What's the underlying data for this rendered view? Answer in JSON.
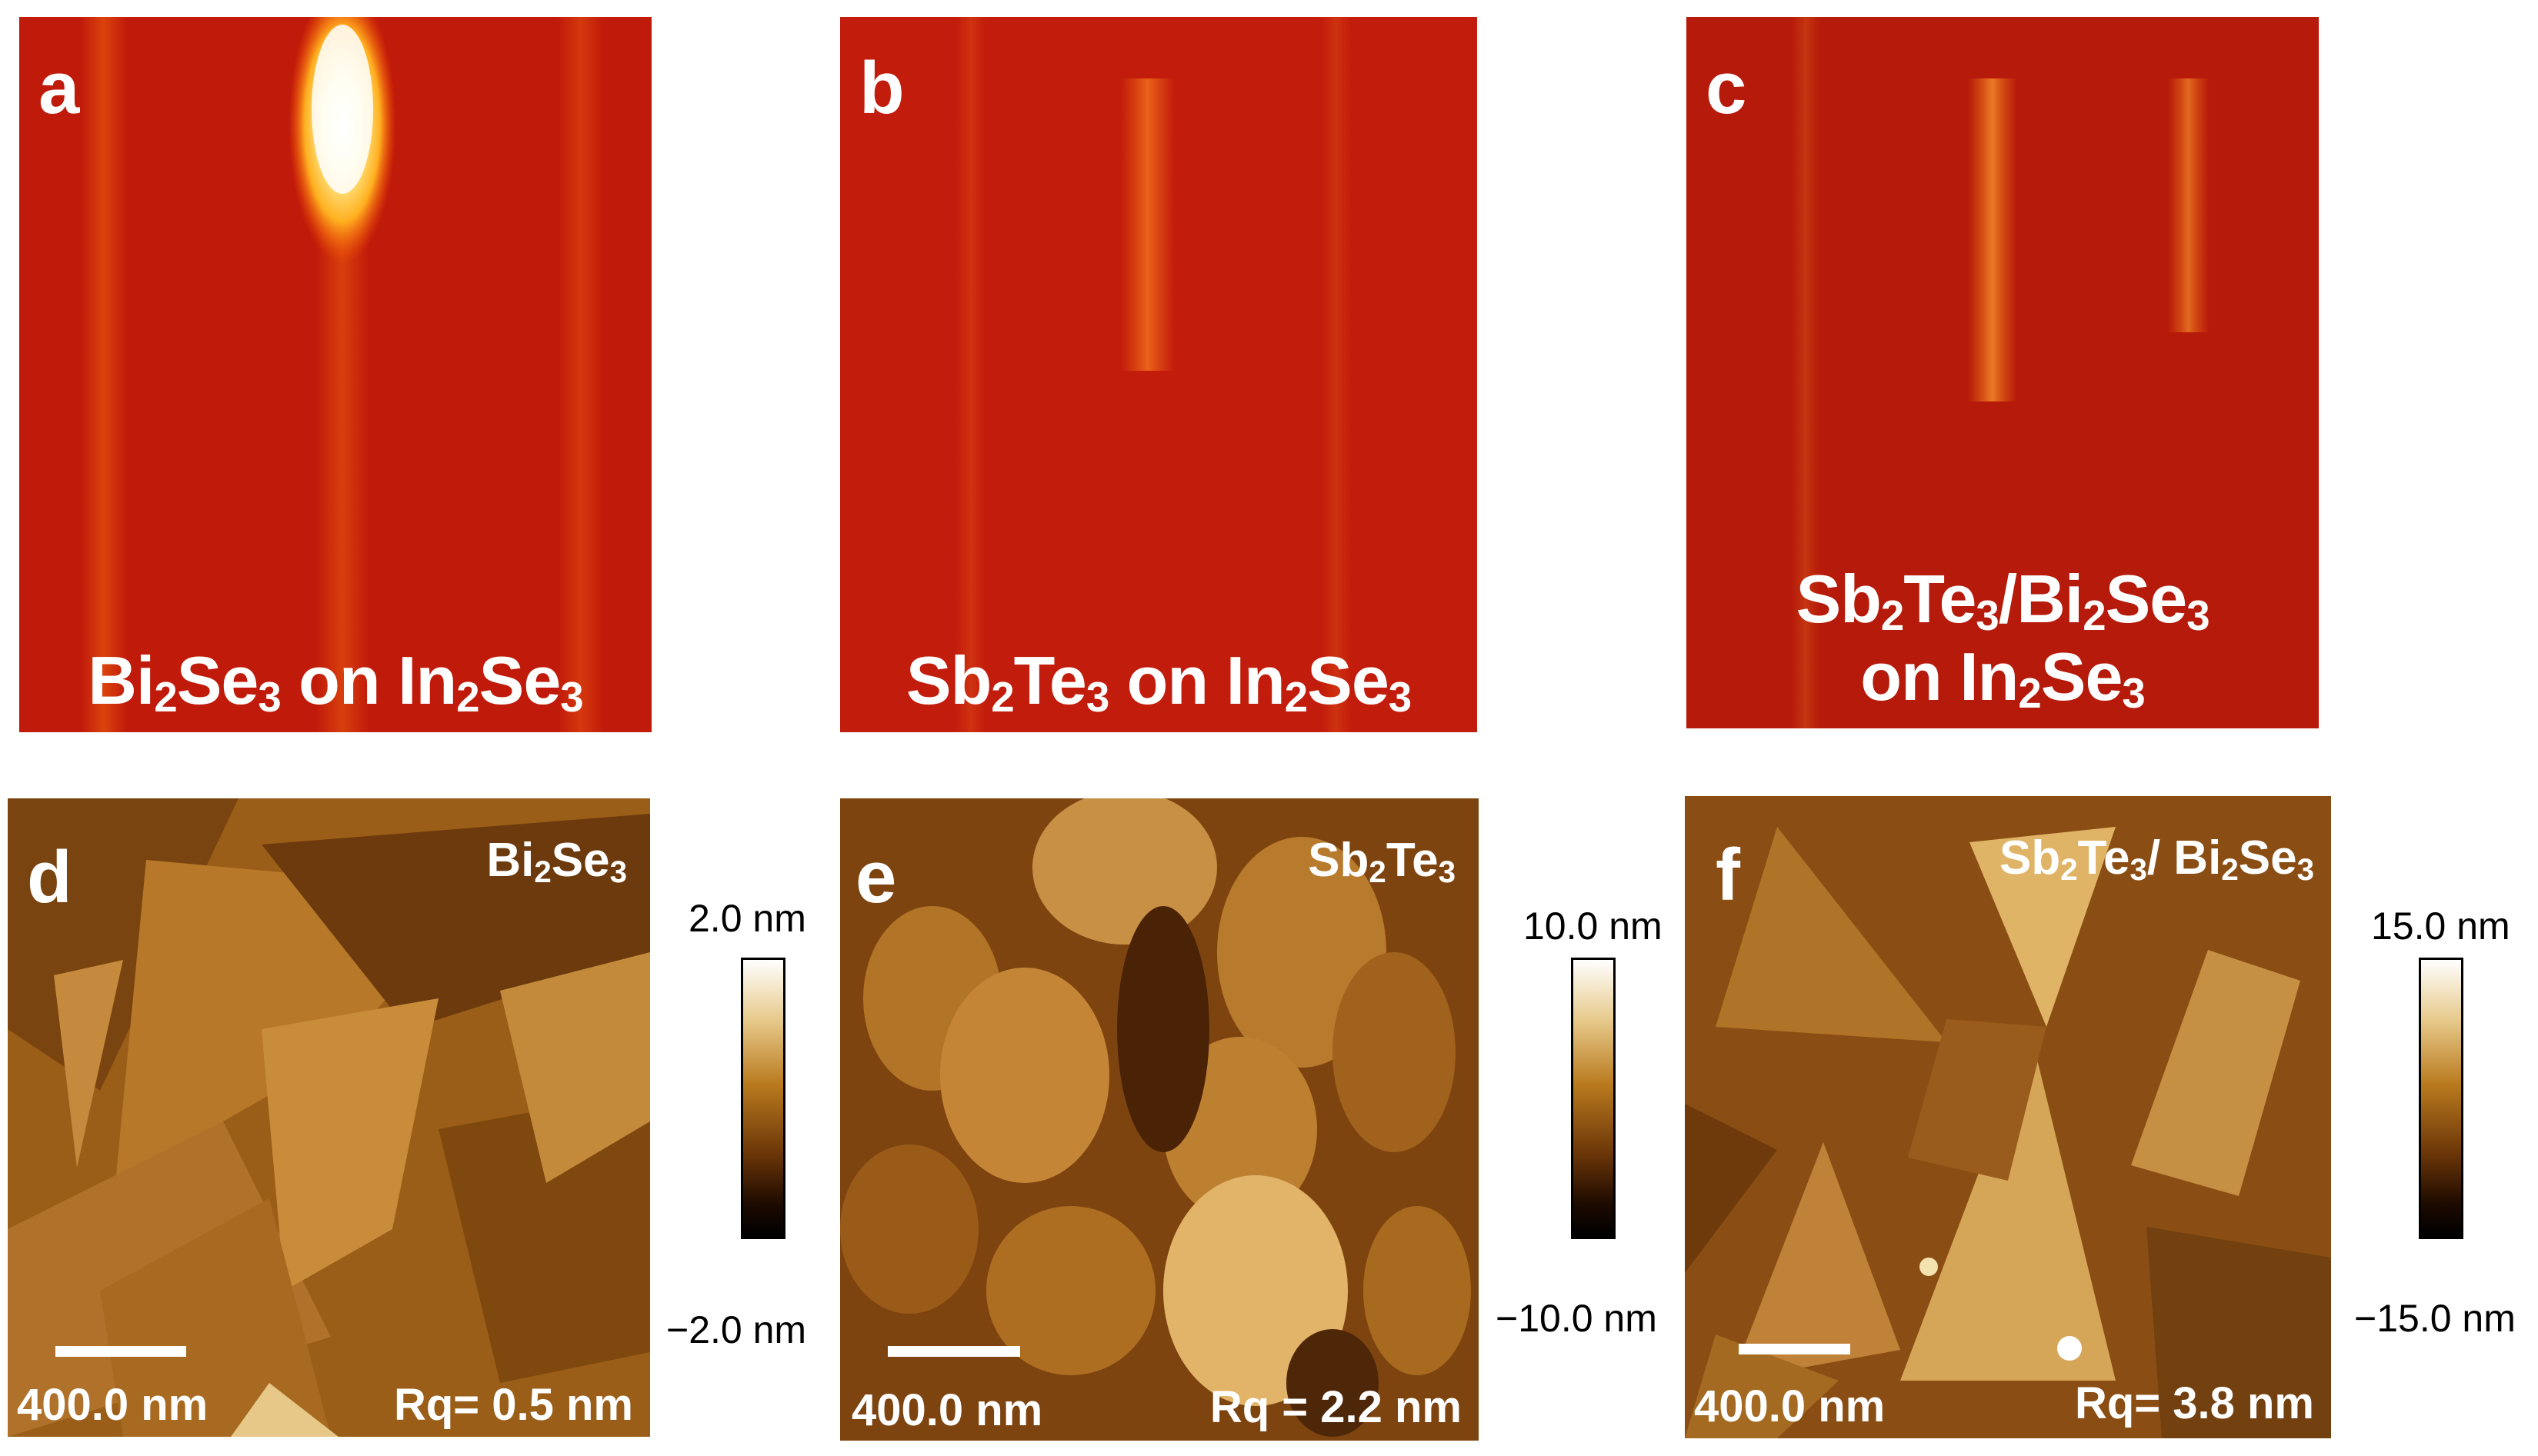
{
  "rheed": [
    {
      "letter": "a",
      "line1": [
        {
          "t": "Bi"
        },
        {
          "s": "2"
        },
        {
          "t": "Se"
        },
        {
          "s": "3"
        },
        {
          "t": " on In"
        },
        {
          "s": "2"
        },
        {
          "t": "Se"
        },
        {
          "s": "3"
        }
      ],
      "line2": []
    },
    {
      "letter": "b",
      "line1": [
        {
          "t": "Sb"
        },
        {
          "s": "2"
        },
        {
          "t": "Te"
        },
        {
          "s": "3"
        },
        {
          "t": " on In"
        },
        {
          "s": "2"
        },
        {
          "t": "Se"
        },
        {
          "s": "3"
        }
      ],
      "line2": []
    },
    {
      "letter": "c",
      "line1": [
        {
          "t": "Sb"
        },
        {
          "s": "2"
        },
        {
          "t": "Te"
        },
        {
          "s": "3"
        },
        {
          "t": "/Bi"
        },
        {
          "s": "2"
        },
        {
          "t": "Se"
        },
        {
          "s": "3"
        }
      ],
      "line2": [
        {
          "t": "on In"
        },
        {
          "s": "2"
        },
        {
          "t": "Se"
        },
        {
          "s": "3"
        }
      ]
    }
  ],
  "afm": [
    {
      "letter": "d",
      "material": [
        {
          "t": "Bi"
        },
        {
          "s": "2"
        },
        {
          "t": "Se"
        },
        {
          "s": "3"
        }
      ],
      "scale_label": "400.0 nm",
      "rq": "Rq= 0.5 nm",
      "cbar_max": "2.0 nm",
      "cbar_min": "−2.0 nm"
    },
    {
      "letter": "e",
      "material": [
        {
          "t": "Sb"
        },
        {
          "s": "2"
        },
        {
          "t": "Te"
        },
        {
          "s": "3"
        }
      ],
      "scale_label": "400.0 nm",
      "rq": "Rq = 2.2 nm",
      "cbar_max": "10.0 nm",
      "cbar_min": "−10.0 nm"
    },
    {
      "letter": "f",
      "material": [
        {
          "t": "Sb"
        },
        {
          "s": "2"
        },
        {
          "t": "Te"
        },
        {
          "s": "3"
        },
        {
          "t": "/ Bi"
        },
        {
          "s": "2"
        },
        {
          "t": "Se"
        },
        {
          "s": "3"
        }
      ],
      "scale_label": "400.0 nm",
      "rq": "Rq= 3.8 nm",
      "cbar_max": "15.0 nm",
      "cbar_min": "−15.0 nm"
    }
  ],
  "colors": {
    "rheed_bg": "#c31a0a",
    "rheed_streak": "#ff8a1a",
    "afm_mid": "#a8691c",
    "afm_dark": "#5a2a06",
    "afm_light": "#f0d9a0"
  }
}
